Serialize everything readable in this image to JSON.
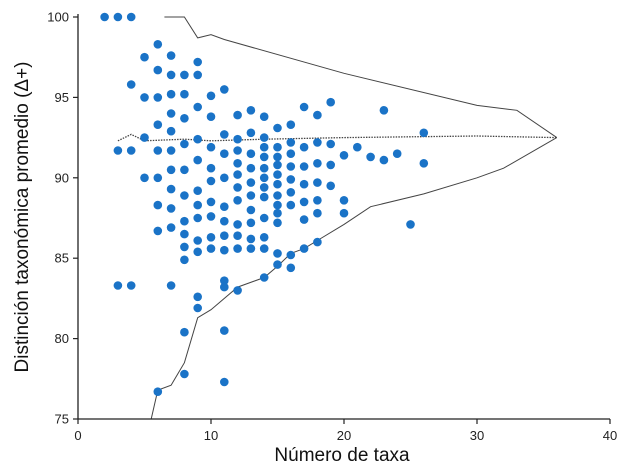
{
  "chart_data": {
    "type": "scatter",
    "xlabel": "Número de taxa",
    "ylabel": "Distinción taxonómica promedio (Δ+)",
    "xlim": [
      0,
      40
    ],
    "ylim": [
      75,
      100
    ],
    "x_ticks": [
      0,
      10,
      20,
      30,
      40
    ],
    "y_ticks": [
      75,
      80,
      85,
      90,
      95,
      100
    ],
    "x_tick_labels": [
      "0",
      "10",
      "20",
      "30",
      "40"
    ],
    "y_tick_labels": [
      "75",
      "80",
      "85",
      "90",
      "95",
      "100"
    ],
    "grid": false,
    "colors": {
      "points": "#1a73c7",
      "lines": "#444444",
      "axes": "#222222"
    },
    "funnel": {
      "upper": [
        [
          6.5,
          100
        ],
        [
          7,
          100
        ],
        [
          8,
          100
        ],
        [
          9,
          98.7
        ],
        [
          10,
          98.9
        ],
        [
          11,
          98.6
        ],
        [
          20,
          96.5
        ],
        [
          30,
          94.5
        ],
        [
          33,
          94.2
        ],
        [
          36,
          92.5
        ]
      ],
      "mean": [
        [
          3,
          92.3
        ],
        [
          4,
          92.7
        ],
        [
          5,
          92.3
        ],
        [
          8,
          92.4
        ],
        [
          10,
          92.3
        ],
        [
          14,
          92.4
        ],
        [
          20,
          92.5
        ],
        [
          30,
          92.6
        ],
        [
          36,
          92.5
        ]
      ],
      "lower": [
        [
          5.5,
          75
        ],
        [
          6,
          76.8
        ],
        [
          7,
          77.1
        ],
        [
          8,
          78.5
        ],
        [
          9,
          81.3
        ],
        [
          10,
          81.8
        ],
        [
          12,
          83.2
        ],
        [
          14,
          83.8
        ],
        [
          15,
          84.5
        ],
        [
          16,
          85.3
        ],
        [
          17,
          85.6
        ],
        [
          18,
          86.1
        ],
        [
          20,
          87.1
        ],
        [
          22,
          88.2
        ],
        [
          26,
          89
        ],
        [
          30,
          90
        ],
        [
          32,
          90.6
        ],
        [
          36,
          92.5
        ]
      ]
    },
    "points": [
      [
        2,
        100
      ],
      [
        3,
        100
      ],
      [
        4,
        100
      ],
      [
        3,
        91.7
      ],
      [
        3,
        83.3
      ],
      [
        4,
        91.7
      ],
      [
        4,
        95.8
      ],
      [
        4,
        83.3
      ],
      [
        5,
        97.5
      ],
      [
        5,
        95
      ],
      [
        5,
        92.5
      ],
      [
        5,
        90
      ],
      [
        6,
        98.3
      ],
      [
        6,
        96.7
      ],
      [
        6,
        95
      ],
      [
        6,
        93.3
      ],
      [
        6,
        91.7
      ],
      [
        6,
        90
      ],
      [
        6,
        88.3
      ],
      [
        6,
        86.7
      ],
      [
        6,
        76.7
      ],
      [
        7,
        97.6
      ],
      [
        7,
        96.4
      ],
      [
        7,
        95.2
      ],
      [
        7,
        94
      ],
      [
        7,
        92.9
      ],
      [
        7,
        91.7
      ],
      [
        7,
        90.5
      ],
      [
        7,
        89.3
      ],
      [
        7,
        88.1
      ],
      [
        7,
        86.9
      ],
      [
        7,
        83.3
      ],
      [
        8,
        96.4
      ],
      [
        8,
        95.2
      ],
      [
        8,
        93.7
      ],
      [
        8,
        92.1
      ],
      [
        8,
        90.5
      ],
      [
        8,
        88.9
      ],
      [
        8,
        87.3
      ],
      [
        8,
        86.5
      ],
      [
        8,
        85.7
      ],
      [
        8,
        84.9
      ],
      [
        8,
        80.4
      ],
      [
        8,
        77.8
      ],
      [
        9,
        97.2
      ],
      [
        9,
        96.4
      ],
      [
        9,
        94.4
      ],
      [
        9,
        92.4
      ],
      [
        9,
        91.1
      ],
      [
        9,
        89.2
      ],
      [
        9,
        88.3
      ],
      [
        9,
        87.5
      ],
      [
        9,
        86.1
      ],
      [
        9,
        85.4
      ],
      [
        9,
        82.6
      ],
      [
        9,
        81.9
      ],
      [
        10,
        95.1
      ],
      [
        10,
        93.8
      ],
      [
        10,
        91.9
      ],
      [
        10,
        90.6
      ],
      [
        10,
        89.8
      ],
      [
        10,
        88.5
      ],
      [
        10,
        87.6
      ],
      [
        10,
        86.3
      ],
      [
        10,
        85.6
      ],
      [
        11,
        95.5
      ],
      [
        11,
        92.7
      ],
      [
        11,
        91.5
      ],
      [
        11,
        90
      ],
      [
        11,
        88.2
      ],
      [
        11,
        87.3
      ],
      [
        11,
        86.4
      ],
      [
        11,
        85.5
      ],
      [
        11,
        83.6
      ],
      [
        11,
        83.2
      ],
      [
        11,
        80.5
      ],
      [
        11,
        77.3
      ],
      [
        12,
        93.9
      ],
      [
        12,
        92.4
      ],
      [
        12,
        91.7
      ],
      [
        12,
        90.9
      ],
      [
        12,
        90.2
      ],
      [
        12,
        89.4
      ],
      [
        12,
        88.6
      ],
      [
        12,
        87.1
      ],
      [
        12,
        86.4
      ],
      [
        12,
        85.6
      ],
      [
        12,
        83
      ],
      [
        13,
        94.2
      ],
      [
        13,
        92.8
      ],
      [
        13,
        91.5
      ],
      [
        13,
        90.6
      ],
      [
        13,
        89.7
      ],
      [
        13,
        88.9
      ],
      [
        13,
        88
      ],
      [
        13,
        87.2
      ],
      [
        13,
        86.2
      ],
      [
        13,
        85.6
      ],
      [
        14,
        93.8
      ],
      [
        14,
        92.5
      ],
      [
        14,
        91.9
      ],
      [
        14,
        91.3
      ],
      [
        14,
        90.6
      ],
      [
        14,
        90
      ],
      [
        14,
        89.4
      ],
      [
        14,
        88.8
      ],
      [
        14,
        87.5
      ],
      [
        14,
        86.3
      ],
      [
        14,
        85.6
      ],
      [
        14,
        83.8
      ],
      [
        15,
        93.1
      ],
      [
        15,
        91.9
      ],
      [
        15,
        91.3
      ],
      [
        15,
        90.8
      ],
      [
        15,
        90.2
      ],
      [
        15,
        89.6
      ],
      [
        15,
        88.9
      ],
      [
        15,
        88.3
      ],
      [
        15,
        87.8
      ],
      [
        15,
        87.2
      ],
      [
        15,
        85.3
      ],
      [
        15,
        84.6
      ],
      [
        16,
        93.3
      ],
      [
        16,
        92.2
      ],
      [
        16,
        91.5
      ],
      [
        16,
        90.7
      ],
      [
        16,
        89.9
      ],
      [
        16,
        89.1
      ],
      [
        16,
        88.3
      ],
      [
        16,
        85.2
      ],
      [
        16,
        84.4
      ],
      [
        17,
        94.4
      ],
      [
        17,
        91.9
      ],
      [
        17,
        90.7
      ],
      [
        17,
        89.6
      ],
      [
        17,
        88.5
      ],
      [
        17,
        87.4
      ],
      [
        17,
        85.6
      ],
      [
        18,
        93.9
      ],
      [
        18,
        92.2
      ],
      [
        18,
        90.9
      ],
      [
        18,
        89.7
      ],
      [
        18,
        88.6
      ],
      [
        18,
        87.8
      ],
      [
        18,
        86
      ],
      [
        19,
        94.7
      ],
      [
        19,
        92.1
      ],
      [
        19,
        90.8
      ],
      [
        19,
        89.5
      ],
      [
        20,
        91.4
      ],
      [
        20,
        88.6
      ],
      [
        20,
        87.8
      ],
      [
        21,
        91.9
      ],
      [
        22,
        91.3
      ],
      [
        23,
        94.2
      ],
      [
        23,
        91.1
      ],
      [
        24,
        91.5
      ],
      [
        25,
        87.1
      ],
      [
        26,
        92.8
      ],
      [
        26,
        90.9
      ]
    ]
  }
}
